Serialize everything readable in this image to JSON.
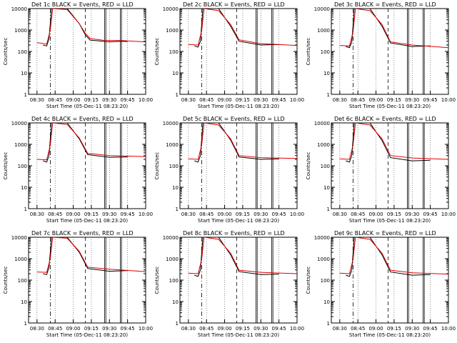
{
  "figure": {
    "background": "#ffffff",
    "colors": {
      "events": "#000000",
      "lld": "#e00000",
      "axis": "#000000"
    }
  },
  "chart_data": [
    {
      "type": "line",
      "title": "Det 1c BLACK = Events, RED = LLD",
      "xlabel": "Start Time (05-Dec-11 08:23:20)",
      "ylabel": "Counts/sec",
      "yscale": "log",
      "ylim": [
        1,
        10000
      ],
      "yticks": [
        "1",
        "10",
        "100",
        "1000",
        "10000"
      ],
      "xticks": [
        "08:30",
        "08:45",
        "09:00",
        "09:15",
        "09:30",
        "09:45",
        "10:00"
      ],
      "series": [
        {
          "name": "Events",
          "color": "#000000",
          "values": [
            [
              "08:35",
              200
            ],
            [
              "08:38",
              180
            ],
            [
              "08:40",
              400
            ],
            [
              "08:42",
              10000
            ],
            [
              "08:44",
              10000
            ],
            [
              "08:55",
              10000
            ],
            [
              "09:05",
              2000
            ],
            [
              "09:10",
              600
            ],
            [
              "09:14",
              340
            ],
            [
              "09:30",
              280
            ],
            [
              "09:40",
              300
            ],
            [
              "09:45",
              290
            ]
          ]
        },
        {
          "name": "LLD",
          "color": "#e00000",
          "values": [
            [
              "08:30",
              260
            ],
            [
              "08:38",
              220
            ],
            [
              "08:41",
              1000
            ],
            [
              "08:43",
              10000
            ],
            [
              "08:55",
              9000
            ],
            [
              "09:05",
              2000
            ],
            [
              "09:10",
              700
            ],
            [
              "09:14",
              400
            ],
            [
              "09:25",
              330
            ],
            [
              "09:40",
              320
            ],
            [
              "10:00",
              280
            ]
          ]
        }
      ]
    },
    {
      "type": "line",
      "title": "Det 2c BLACK = Events, RED = LLD",
      "xlabel": "Start Time (05-Dec-11 08:23:20)",
      "ylabel": "Counts/sec",
      "yscale": "log",
      "ylim": [
        1,
        10000
      ],
      "yticks": [
        "1",
        "10",
        "100",
        "1000",
        "10000"
      ],
      "xticks": [
        "08:30",
        "08:45",
        "09:00",
        "09:15",
        "09:30",
        "09:45",
        "10:00"
      ],
      "series": [
        {
          "name": "Events",
          "color": "#000000",
          "values": [
            [
              "08:35",
              180
            ],
            [
              "08:38",
              160
            ],
            [
              "08:40",
              300
            ],
            [
              "08:42",
              10000
            ],
            [
              "08:55",
              10000
            ],
            [
              "09:05",
              1500
            ],
            [
              "09:12",
              300
            ],
            [
              "09:30",
              200
            ],
            [
              "09:45",
              210
            ]
          ]
        },
        {
          "name": "LLD",
          "color": "#e00000",
          "values": [
            [
              "08:30",
              210
            ],
            [
              "08:38",
              200
            ],
            [
              "08:41",
              900
            ],
            [
              "08:43",
              10000
            ],
            [
              "08:55",
              8000
            ],
            [
              "09:05",
              1800
            ],
            [
              "09:12",
              350
            ],
            [
              "09:30",
              230
            ],
            [
              "10:00",
              190
            ]
          ]
        }
      ]
    },
    {
      "type": "line",
      "title": "Det 3c BLACK = Events, RED = LLD",
      "xlabel": "Start Time (05-Dec-11 08:23:20)",
      "ylabel": "Counts/sec",
      "yscale": "log",
      "ylim": [
        1,
        10000
      ],
      "yticks": [
        "1",
        "10",
        "100",
        "1000",
        "10000"
      ],
      "xticks": [
        "08:30",
        "08:45",
        "09:00",
        "09:15",
        "09:30",
        "09:45",
        "10:00"
      ],
      "series": [
        {
          "name": "Events",
          "color": "#000000",
          "values": [
            [
              "08:35",
              170
            ],
            [
              "08:38",
              150
            ],
            [
              "08:40",
              280
            ],
            [
              "08:42",
              10000
            ],
            [
              "08:55",
              10000
            ],
            [
              "09:05",
              1500
            ],
            [
              "09:12",
              250
            ],
            [
              "09:30",
              170
            ],
            [
              "09:45",
              180
            ]
          ]
        },
        {
          "name": "LLD",
          "color": "#e00000",
          "values": [
            [
              "08:30",
              190
            ],
            [
              "08:38",
              180
            ],
            [
              "08:41",
              800
            ],
            [
              "08:43",
              10000
            ],
            [
              "08:55",
              8000
            ],
            [
              "09:05",
              1800
            ],
            [
              "09:12",
              280
            ],
            [
              "09:30",
              200
            ],
            [
              "10:00",
              150
            ]
          ]
        }
      ]
    },
    {
      "type": "line",
      "title": "Det 4c BLACK = Events, RED = LLD",
      "xlabel": "Start Time (05-Dec-11 08:23:20)",
      "ylabel": "Counts/sec",
      "yscale": "log",
      "ylim": [
        1,
        10000
      ],
      "yticks": [
        "1",
        "10",
        "100",
        "1000",
        "10000"
      ],
      "xticks": [
        "08:30",
        "08:45",
        "09:00",
        "09:15",
        "09:30",
        "09:45",
        "10:00"
      ],
      "series": [
        {
          "name": "Events",
          "color": "#000000",
          "values": [
            [
              "08:35",
              170
            ],
            [
              "08:38",
              150
            ],
            [
              "08:40",
              300
            ],
            [
              "08:42",
              10000
            ],
            [
              "08:55",
              10000
            ],
            [
              "09:05",
              1800
            ],
            [
              "09:12",
              330
            ],
            [
              "09:30",
              250
            ],
            [
              "09:45",
              260
            ]
          ]
        },
        {
          "name": "LLD",
          "color": "#e00000",
          "values": [
            [
              "08:30",
              200
            ],
            [
              "08:38",
              190
            ],
            [
              "08:41",
              900
            ],
            [
              "08:43",
              10000
            ],
            [
              "08:55",
              8500
            ],
            [
              "09:05",
              2000
            ],
            [
              "09:12",
              380
            ],
            [
              "09:30",
              300
            ],
            [
              "10:00",
              270
            ]
          ]
        }
      ]
    },
    {
      "type": "line",
      "title": "Det 5c BLACK = Events, RED = LLD",
      "xlabel": "Start Time (05-Dec-11 08:23:20)",
      "ylabel": "Counts/sec",
      "yscale": "log",
      "ylim": [
        1,
        10000
      ],
      "yticks": [
        "1",
        "10",
        "100",
        "1000",
        "10000"
      ],
      "xticks": [
        "08:30",
        "08:45",
        "09:00",
        "09:15",
        "09:30",
        "09:45",
        "10:00"
      ],
      "series": [
        {
          "name": "Events",
          "color": "#000000",
          "values": [
            [
              "08:35",
              170
            ],
            [
              "08:38",
              150
            ],
            [
              "08:40",
              300
            ],
            [
              "08:42",
              10000
            ],
            [
              "08:55",
              10000
            ],
            [
              "09:05",
              1600
            ],
            [
              "09:12",
              260
            ],
            [
              "09:30",
              200
            ],
            [
              "09:45",
              210
            ]
          ]
        },
        {
          "name": "LLD",
          "color": "#e00000",
          "values": [
            [
              "08:30",
              210
            ],
            [
              "08:38",
              200
            ],
            [
              "08:41",
              900
            ],
            [
              "08:43",
              10000
            ],
            [
              "08:55",
              8000
            ],
            [
              "09:05",
              1800
            ],
            [
              "09:12",
              300
            ],
            [
              "09:30",
              240
            ],
            [
              "10:00",
              220
            ]
          ]
        }
      ]
    },
    {
      "type": "line",
      "title": "Det 6c BLACK = Events, RED = LLD",
      "xlabel": "Start Time (05-Dec-11 08:23:20)",
      "ylabel": "Counts/sec",
      "yscale": "log",
      "ylim": [
        1,
        10000
      ],
      "yticks": [
        "1",
        "10",
        "100",
        "1000",
        "10000"
      ],
      "xticks": [
        "08:30",
        "08:45",
        "09:00",
        "09:15",
        "09:30",
        "09:45",
        "10:00"
      ],
      "series": [
        {
          "name": "Events",
          "color": "#000000",
          "values": [
            [
              "08:35",
              170
            ],
            [
              "08:38",
              150
            ],
            [
              "08:40",
              300
            ],
            [
              "08:42",
              10000
            ],
            [
              "08:55",
              10000
            ],
            [
              "09:05",
              1500
            ],
            [
              "09:12",
              240
            ],
            [
              "09:30",
              170
            ],
            [
              "09:45",
              180
            ]
          ]
        },
        {
          "name": "LLD",
          "color": "#e00000",
          "values": [
            [
              "08:30",
              210
            ],
            [
              "08:38",
              200
            ],
            [
              "08:41",
              900
            ],
            [
              "08:43",
              10000
            ],
            [
              "08:55",
              8000
            ],
            [
              "09:05",
              1800
            ],
            [
              "09:12",
              300
            ],
            [
              "09:30",
              230
            ],
            [
              "10:00",
              200
            ]
          ]
        }
      ]
    },
    {
      "type": "line",
      "title": "Det 7c BLACK = Events, RED = LLD",
      "xlabel": "Start Time (05-Dec-11 08:23:20)",
      "ylabel": "Counts/sec",
      "yscale": "log",
      "ylim": [
        1,
        10000
      ],
      "yticks": [
        "1",
        "10",
        "100",
        "1000",
        "10000"
      ],
      "xticks": [
        "08:30",
        "08:45",
        "09:00",
        "09:15",
        "09:30",
        "09:45",
        "10:00"
      ],
      "series": [
        {
          "name": "Events",
          "color": "#000000",
          "values": [
            [
              "08:35",
              200
            ],
            [
              "08:38",
              180
            ],
            [
              "08:40",
              400
            ],
            [
              "08:42",
              10000
            ],
            [
              "08:55",
              10000
            ],
            [
              "09:05",
              2000
            ],
            [
              "09:12",
              350
            ],
            [
              "09:30",
              260
            ],
            [
              "09:45",
              280
            ]
          ]
        },
        {
          "name": "LLD",
          "color": "#e00000",
          "values": [
            [
              "08:30",
              240
            ],
            [
              "08:38",
              230
            ],
            [
              "08:41",
              1000
            ],
            [
              "08:43",
              10000
            ],
            [
              "08:55",
              9000
            ],
            [
              "09:05",
              2200
            ],
            [
              "09:12",
              400
            ],
            [
              "09:30",
              320
            ],
            [
              "10:00",
              250
            ]
          ]
        }
      ]
    },
    {
      "type": "line",
      "title": "Det 8c BLACK = Events, RED = LLD",
      "xlabel": "Start Time (05-Dec-11 08:23:20)",
      "ylabel": "Counts/sec",
      "yscale": "log",
      "ylim": [
        1,
        10000
      ],
      "yticks": [
        "1",
        "10",
        "100",
        "1000",
        "10000"
      ],
      "xticks": [
        "08:30",
        "08:45",
        "09:00",
        "09:15",
        "09:30",
        "09:45",
        "10:00"
      ],
      "series": [
        {
          "name": "Events",
          "color": "#000000",
          "values": [
            [
              "08:35",
              170
            ],
            [
              "08:38",
              150
            ],
            [
              "08:40",
              300
            ],
            [
              "08:42",
              10000
            ],
            [
              "08:55",
              10000
            ],
            [
              "09:05",
              1500
            ],
            [
              "09:12",
              250
            ],
            [
              "09:30",
              180
            ],
            [
              "09:45",
              190
            ]
          ]
        },
        {
          "name": "LLD",
          "color": "#e00000",
          "values": [
            [
              "08:30",
              210
            ],
            [
              "08:38",
              200
            ],
            [
              "08:41",
              900
            ],
            [
              "08:43",
              10000
            ],
            [
              "08:55",
              8000
            ],
            [
              "09:05",
              1800
            ],
            [
              "09:12",
              290
            ],
            [
              "09:30",
              230
            ],
            [
              "10:00",
              200
            ]
          ]
        }
      ]
    },
    {
      "type": "line",
      "title": "Det 9c BLACK = Events, RED = LLD",
      "xlabel": "Start Time (05-Dec-11 08:23:20)",
      "ylabel": "Counts/sec",
      "yscale": "log",
      "ylim": [
        1,
        10000
      ],
      "yticks": [
        "1",
        "10",
        "100",
        "1000",
        "10000"
      ],
      "xticks": [
        "08:30",
        "08:45",
        "09:00",
        "09:15",
        "09:30",
        "09:45",
        "10:00"
      ],
      "series": [
        {
          "name": "Events",
          "color": "#000000",
          "values": [
            [
              "08:35",
              170
            ],
            [
              "08:38",
              150
            ],
            [
              "08:40",
              300
            ],
            [
              "08:42",
              10000
            ],
            [
              "08:55",
              10000
            ],
            [
              "09:05",
              1500
            ],
            [
              "09:12",
              240
            ],
            [
              "09:30",
              170
            ],
            [
              "09:45",
              180
            ]
          ]
        },
        {
          "name": "LLD",
          "color": "#e00000",
          "values": [
            [
              "08:30",
              210
            ],
            [
              "08:38",
              200
            ],
            [
              "08:41",
              900
            ],
            [
              "08:43",
              10000
            ],
            [
              "08:55",
              8000
            ],
            [
              "09:05",
              1800
            ],
            [
              "09:12",
              290
            ],
            [
              "09:30",
              220
            ],
            [
              "10:00",
              190
            ]
          ]
        }
      ]
    }
  ]
}
